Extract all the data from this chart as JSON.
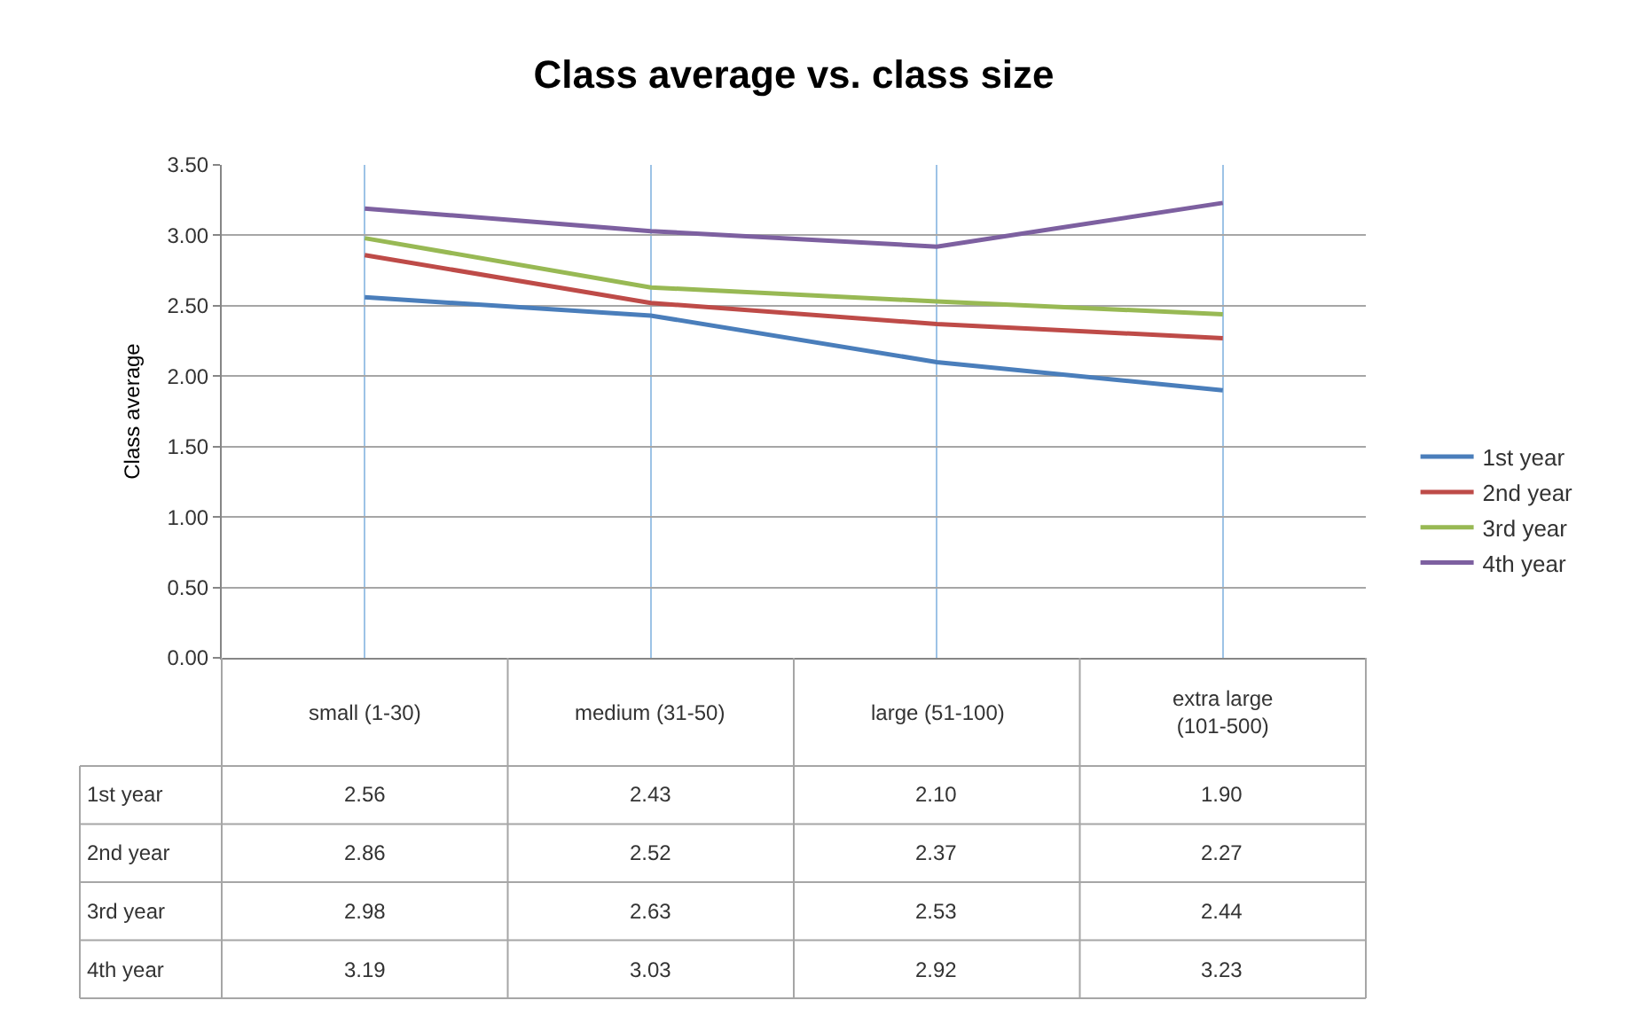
{
  "chart_data": {
    "type": "line",
    "title": "Class average vs. class size",
    "ylabel": "Class average",
    "categories": [
      "small (1-30)",
      "medium (31-50)",
      "large (51-100)",
      "extra large (101-500)"
    ],
    "series": [
      {
        "name": "1st year",
        "color": "#4a7ebb",
        "values": [
          2.56,
          2.43,
          2.1,
          1.9
        ],
        "value_labels": [
          "2.56",
          "2.43",
          "2.10",
          "1.90"
        ]
      },
      {
        "name": "2nd year",
        "color": "#be4b48",
        "values": [
          2.86,
          2.52,
          2.37,
          2.27
        ],
        "value_labels": [
          "2.86",
          "2.52",
          "2.37",
          "2.27"
        ]
      },
      {
        "name": "3rd year",
        "color": "#98b954",
        "values": [
          2.98,
          2.63,
          2.53,
          2.44
        ],
        "value_labels": [
          "2.98",
          "2.63",
          "2.53",
          "2.44"
        ]
      },
      {
        "name": "4th year",
        "color": "#7d60a0",
        "values": [
          3.19,
          3.03,
          2.92,
          3.23
        ],
        "value_labels": [
          "3.19",
          "3.03",
          "2.92",
          "3.23"
        ]
      }
    ],
    "ylim": [
      0,
      3.5
    ],
    "yticks": [
      {
        "value": 0,
        "label": "0.00"
      },
      {
        "value": 0.5,
        "label": "0.50"
      },
      {
        "value": 1,
        "label": "1.00"
      },
      {
        "value": 1.5,
        "label": "1.50"
      },
      {
        "value": 2,
        "label": "2.00"
      },
      {
        "value": 2.5,
        "label": "2.50"
      },
      {
        "value": 3,
        "label": "3.00"
      },
      {
        "value": 3.5,
        "label": "3.50"
      }
    ],
    "grid": true,
    "legend": "right",
    "marker": "none",
    "line_style": "solid"
  }
}
